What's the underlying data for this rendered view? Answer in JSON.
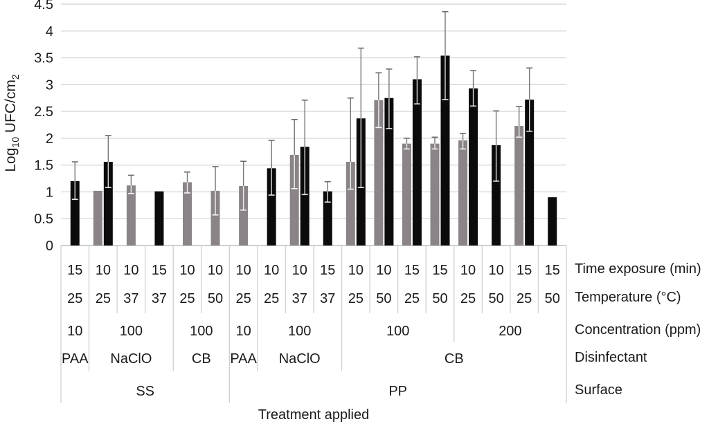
{
  "figure": {
    "xlabel": "Treatment applied",
    "ylabel": {
      "prefix": "Log",
      "sub1": "10",
      "mid": " UFC/cm",
      "sub2": "2"
    },
    "row_labels": {
      "time": "Time exposure (min)",
      "temperature": "Temperature (°C)",
      "concentration": "Concentration (ppm)",
      "disinfectant": "Disinfectant",
      "surface": "Surface"
    }
  },
  "chart_data": {
    "type": "bar",
    "title": "",
    "xlabel": "Treatment applied",
    "ylabel": "Log10 UFC/cm2",
    "ylim": [
      0,
      4.5
    ],
    "grid": true,
    "legend": null,
    "yticks": [
      "0",
      "0.5",
      "1",
      "1.5",
      "2",
      "2.5",
      "3",
      "3.5",
      "4",
      "4.5"
    ],
    "series_colors": {
      "gray": "#8a8488",
      "black": "#0b0b0b"
    },
    "columns": [
      {
        "time": "15",
        "temp": "25",
        "bars": [
          {
            "series": "black",
            "value": 1.2,
            "err_hi": 1.56,
            "err_lo": 0.86
          }
        ]
      },
      {
        "time": "10",
        "temp": "25",
        "bars": [
          {
            "series": "gray",
            "value": 1.02
          },
          {
            "series": "black",
            "value": 1.56,
            "err_hi": 2.05,
            "err_lo": 1.08
          }
        ]
      },
      {
        "time": "10",
        "temp": "37",
        "bars": [
          {
            "series": "gray",
            "value": 1.12,
            "err_hi": 1.31,
            "err_lo": 0.97
          }
        ]
      },
      {
        "time": "15",
        "temp": "37",
        "bars": [
          {
            "series": "black",
            "value": 1.01
          }
        ]
      },
      {
        "time": "10",
        "temp": "25",
        "bars": [
          {
            "series": "gray",
            "value": 1.18,
            "err_hi": 1.37,
            "err_lo": 0.98
          }
        ]
      },
      {
        "time": "10",
        "temp": "50",
        "bars": [
          {
            "series": "gray",
            "value": 1.02,
            "err_hi": 1.47,
            "err_lo": 0.57
          }
        ]
      },
      {
        "time": "10",
        "temp": "25",
        "bars": [
          {
            "series": "gray",
            "value": 1.11,
            "err_hi": 1.57,
            "err_lo": 0.66
          }
        ]
      },
      {
        "time": "10",
        "temp": "25",
        "bars": [
          {
            "series": "black",
            "value": 1.44,
            "err_hi": 1.96,
            "err_lo": 0.94
          }
        ]
      },
      {
        "time": "10",
        "temp": "37",
        "bars": [
          {
            "series": "gray",
            "value": 1.69,
            "err_hi": 2.35,
            "err_lo": 1.06
          },
          {
            "series": "black",
            "value": 1.84,
            "err_hi": 2.71,
            "err_lo": 0.95
          }
        ]
      },
      {
        "time": "15",
        "temp": "37",
        "bars": [
          {
            "series": "black",
            "value": 1.01,
            "err_hi": 1.19,
            "err_lo": 0.81
          }
        ]
      },
      {
        "time": "10",
        "temp": "25",
        "bars": [
          {
            "series": "gray",
            "value": 1.56,
            "err_hi": 2.75,
            "err_lo": 1.05
          },
          {
            "series": "black",
            "value": 2.37,
            "err_hi": 3.68,
            "err_lo": 1.08
          }
        ]
      },
      {
        "time": "10",
        "temp": "50",
        "bars": [
          {
            "series": "gray",
            "value": 2.71,
            "err_hi": 3.22,
            "err_lo": 2.2
          },
          {
            "series": "black",
            "value": 2.75,
            "err_hi": 3.29,
            "err_lo": 2.18
          }
        ]
      },
      {
        "time": "15",
        "temp": "25",
        "bars": [
          {
            "series": "gray",
            "value": 1.9,
            "err_hi": 2.0,
            "err_lo": 1.8
          },
          {
            "series": "black",
            "value": 3.1,
            "err_hi": 3.52,
            "err_lo": 2.64
          }
        ]
      },
      {
        "time": "15",
        "temp": "50",
        "bars": [
          {
            "series": "gray",
            "value": 1.9,
            "err_hi": 2.02,
            "err_lo": 1.8
          },
          {
            "series": "black",
            "value": 3.54,
            "err_hi": 4.36,
            "err_lo": 2.72
          }
        ]
      },
      {
        "time": "10",
        "temp": "25",
        "bars": [
          {
            "series": "gray",
            "value": 1.96,
            "err_hi": 2.09,
            "err_lo": 1.8
          },
          {
            "series": "black",
            "value": 2.93,
            "err_hi": 3.26,
            "err_lo": 2.6
          }
        ]
      },
      {
        "time": "10",
        "temp": "50",
        "bars": [
          {
            "series": "black",
            "value": 1.87,
            "err_hi": 2.51,
            "err_lo": 1.2
          }
        ]
      },
      {
        "time": "15",
        "temp": "25",
        "bars": [
          {
            "series": "gray",
            "value": 2.23,
            "err_hi": 2.59,
            "err_lo": 2.02
          },
          {
            "series": "black",
            "value": 2.72,
            "err_hi": 3.31,
            "err_lo": 2.13
          }
        ]
      },
      {
        "time": "15",
        "temp": "50",
        "bars": [
          {
            "series": "black",
            "value": 0.9
          }
        ]
      }
    ],
    "concentration_groups": [
      {
        "label": "10",
        "start": 0,
        "end": 0
      },
      {
        "label": "100",
        "start": 1,
        "end": 3
      },
      {
        "label": "100",
        "start": 4,
        "end": 5
      },
      {
        "label": "10",
        "start": 6,
        "end": 6
      },
      {
        "label": "100",
        "start": 7,
        "end": 9
      },
      {
        "label": "100",
        "start": 10,
        "end": 13
      },
      {
        "label": "200",
        "start": 14,
        "end": 17
      }
    ],
    "disinfectant_groups": [
      {
        "label": "PAA",
        "start": 0,
        "end": 0
      },
      {
        "label": "NaClO",
        "start": 1,
        "end": 3
      },
      {
        "label": "CB",
        "start": 4,
        "end": 5
      },
      {
        "label": "PAA",
        "start": 6,
        "end": 6
      },
      {
        "label": "NaClO",
        "start": 7,
        "end": 9
      },
      {
        "label": "CB",
        "start": 10,
        "end": 17
      }
    ],
    "surface_groups": [
      {
        "label": "SS",
        "start": 0,
        "end": 5
      },
      {
        "label": "PP",
        "start": 6,
        "end": 17
      }
    ]
  }
}
